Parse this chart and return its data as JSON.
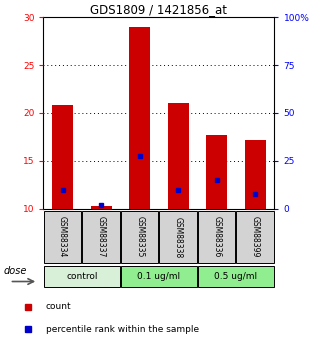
{
  "title": "GDS1809 / 1421856_at",
  "samples": [
    "GSM88334",
    "GSM88337",
    "GSM88335",
    "GSM88338",
    "GSM88336",
    "GSM88399"
  ],
  "base": 10,
  "red_tops": [
    20.8,
    10.3,
    29.0,
    21.0,
    17.7,
    17.2
  ],
  "blue_values": [
    12.0,
    10.4,
    15.5,
    12.0,
    13.0,
    11.5
  ],
  "left_ylim": [
    10,
    30
  ],
  "right_ylim": [
    0,
    100
  ],
  "left_yticks": [
    10,
    15,
    20,
    25,
    30
  ],
  "right_yticks": [
    0,
    25,
    50,
    75,
    100
  ],
  "right_yticklabels": [
    "0",
    "25",
    "50",
    "75",
    "100%"
  ],
  "bar_width": 0.55,
  "red_color": "#cc0000",
  "blue_color": "#0000cc",
  "legend_red_label": "count",
  "legend_blue_label": "percentile rank within the sample",
  "dose_label": "dose",
  "group_defs": [
    [
      0,
      2,
      "control",
      "#d8f0d8"
    ],
    [
      2,
      4,
      "0.1 ug/ml",
      "#90ee90"
    ],
    [
      4,
      6,
      "0.5 ug/ml",
      "#90ee90"
    ]
  ],
  "sample_bg": "#d3d3d3"
}
